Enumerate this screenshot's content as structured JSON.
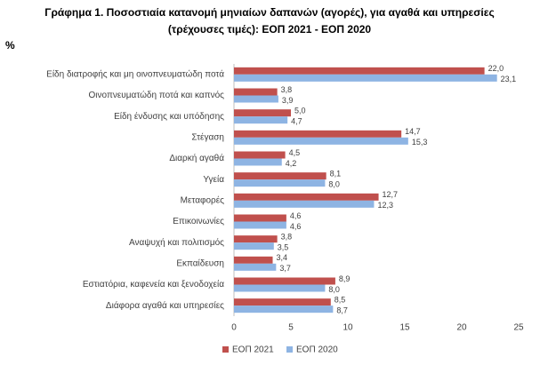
{
  "chart_data": {
    "type": "bar",
    "orientation": "horizontal",
    "title": [
      "Γράφημα 1. Ποσοστιαία κατανομή μηνιαίων δαπανών (αγορές), για αγαθά και υπηρεσίες",
      "(τρέχουσες τιμές): ΕΟΠ 2021 - ΕΟΠ 2020"
    ],
    "ylabel": "%",
    "categories": [
      "Είδη διατροφής και μη οινοπνευματώδη ποτά",
      "Οινοπνευματώδη ποτά και καπνός",
      "Είδη ένδυσης και υπόδησης",
      "Στέγαση",
      "Διαρκή αγαθά",
      "Υγεία",
      "Μεταφορές",
      "Επικοινωνίες",
      "Αναψυχή και πολιτισμός",
      "Εκπαίδευση",
      "Εστιατόρια, καφενεία  και ξενοδοχεία",
      "Διάφορα αγαθά και υπηρεσίες"
    ],
    "series": [
      {
        "name": "ΕΟΠ 2021",
        "color": "#c0504d",
        "values": [
          22.0,
          3.8,
          5.0,
          14.7,
          4.5,
          8.1,
          12.7,
          4.6,
          3.8,
          3.4,
          8.9,
          8.5
        ],
        "value_labels": [
          "22,0",
          "3,8",
          "5,0",
          "14,7",
          "4,5",
          "8,1",
          "12,7",
          "4,6",
          "3,8",
          "3,4",
          "8,9",
          "8,5"
        ]
      },
      {
        "name": "ΕΟΠ 2020",
        "color": "#8eb4e3",
        "values": [
          23.1,
          3.9,
          4.7,
          15.3,
          4.2,
          8.0,
          12.3,
          4.6,
          3.5,
          3.7,
          8.0,
          8.7
        ],
        "value_labels": [
          "23,1",
          "3,9",
          "4,7",
          "15,3",
          "4,2",
          "8,0",
          "12,3",
          "4,6",
          "3,5",
          "3,7",
          "8,0",
          "8,7"
        ]
      }
    ],
    "xlim": [
      0,
      25
    ],
    "xticks": [
      0,
      5,
      10,
      15,
      20,
      25
    ],
    "grid": false,
    "legend": "bottom"
  }
}
